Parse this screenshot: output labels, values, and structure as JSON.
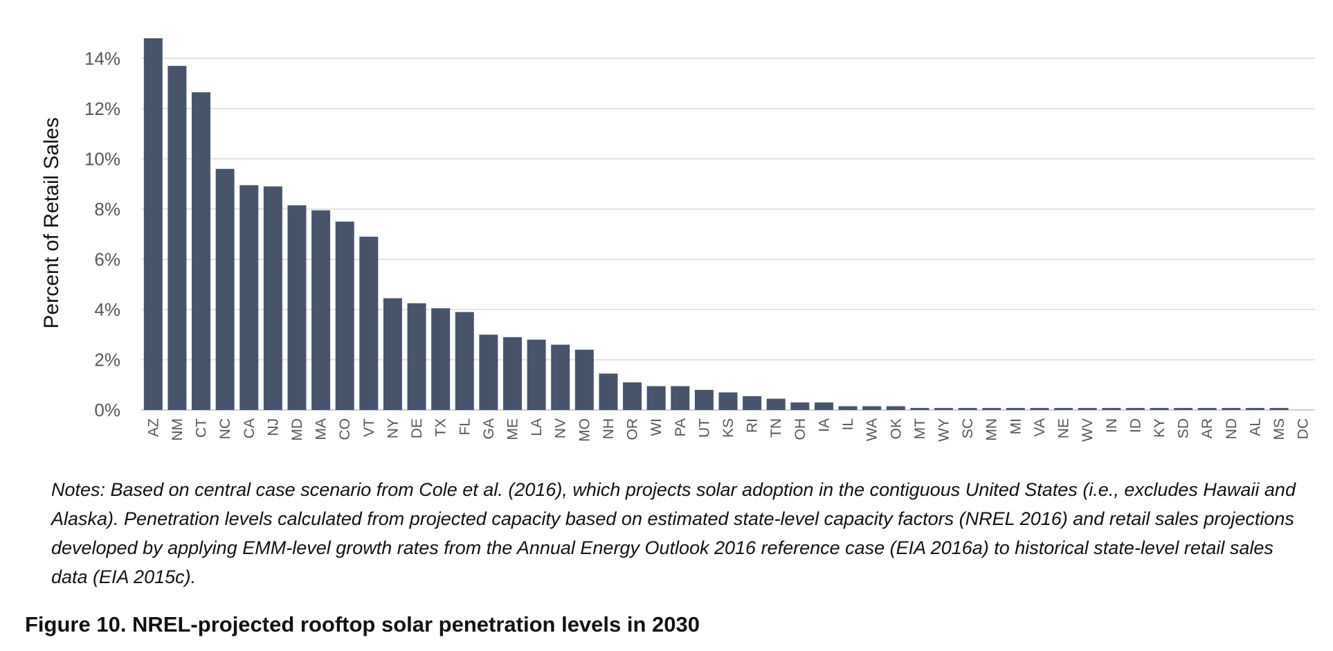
{
  "chart_data": {
    "type": "bar",
    "ylabel": "Percent of Retail Sales",
    "xlabel": "",
    "ylim": [
      0,
      15
    ],
    "yticks": [
      0,
      2,
      4,
      6,
      8,
      10,
      12,
      14
    ],
    "ytick_labels": [
      "0%",
      "2%",
      "4%",
      "6%",
      "8%",
      "10%",
      "12%",
      "14%"
    ],
    "grid": true,
    "bar_color": "#48546b",
    "grid_color": "#d9d9d9",
    "categories": [
      "AZ",
      "NM",
      "CT",
      "NC",
      "CA",
      "NJ",
      "MD",
      "MA",
      "CO",
      "VT",
      "NY",
      "DE",
      "TX",
      "FL",
      "GA",
      "ME",
      "LA",
      "NV",
      "MO",
      "NH",
      "OR",
      "WI",
      "PA",
      "UT",
      "KS",
      "RI",
      "TN",
      "OH",
      "IA",
      "IL",
      "WA",
      "OK",
      "MT",
      "WY",
      "SC",
      "MN",
      "MI",
      "VA",
      "NE",
      "WV",
      "IN",
      "ID",
      "KY",
      "SD",
      "AR",
      "ND",
      "AL",
      "MS",
      "DC"
    ],
    "values": [
      14.8,
      13.7,
      12.65,
      9.6,
      8.95,
      8.9,
      8.15,
      7.95,
      7.5,
      6.9,
      4.45,
      4.25,
      4.05,
      3.9,
      3.0,
      2.9,
      2.8,
      2.6,
      2.4,
      1.45,
      1.1,
      0.95,
      0.95,
      0.8,
      0.7,
      0.55,
      0.45,
      0.3,
      0.3,
      0.15,
      0.15,
      0.15,
      0.08,
      0.08,
      0.08,
      0.08,
      0.08,
      0.08,
      0.08,
      0.08,
      0.08,
      0.08,
      0.08,
      0.08,
      0.08,
      0.08,
      0.08,
      0.08,
      0.0
    ]
  },
  "notes": "Notes: Based on central case scenario from Cole et al. (2016), which projects solar adoption in the contiguous United States (i.e., excludes Hawaii and Alaska). Penetration levels calculated from projected capacity based on estimated state-level capacity factors (NREL 2016) and retail sales projections developed by applying EMM-level growth rates from the Annual Energy Outlook 2016 reference case (EIA 2016a) to historical state-level retail sales data (EIA 2015c).",
  "caption": "Figure 10. NREL-projected rooftop solar penetration levels in 2030"
}
